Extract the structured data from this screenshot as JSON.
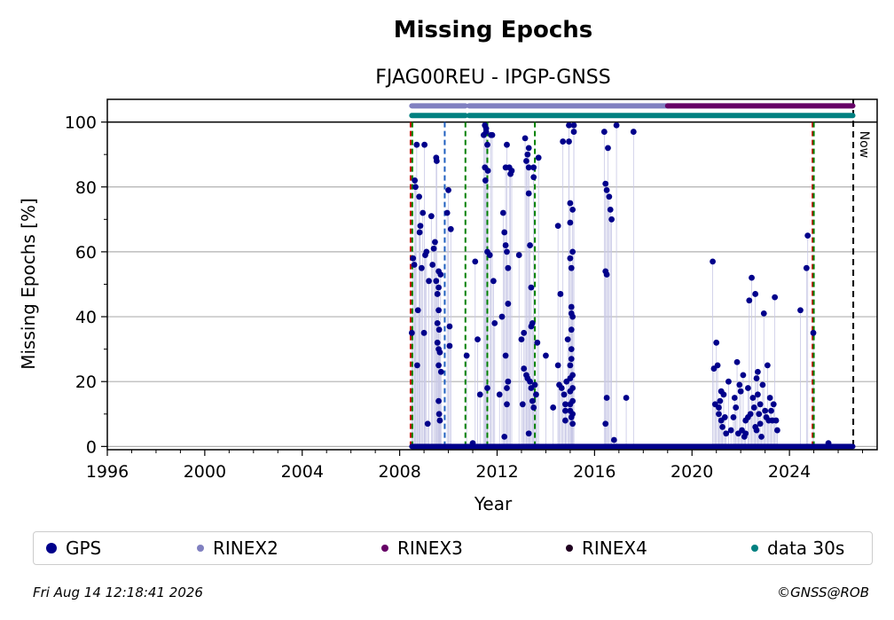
{
  "chart_data": {
    "type": "scatter",
    "title": "Missing Epochs",
    "subtitle": "FJAG00REU - IPGP-GNSS",
    "xlabel": "Year",
    "ylabel": "Missing Epochs [%]",
    "xlim": [
      1996,
      2027.6
    ],
    "ylim": [
      -1,
      107
    ],
    "x_ticks": [
      "1996",
      "2000",
      "2004",
      "2008",
      "2012",
      "2016",
      "2020",
      "2024"
    ],
    "y_ticks": [
      "0",
      "20",
      "40",
      "60",
      "80",
      "100"
    ],
    "grid": "horizontal",
    "now_label": "Now",
    "now_year": 2026.62,
    "colors": {
      "gps": "#00008b",
      "rinex2": "#8080c0",
      "rinex3": "#660066",
      "rinex4": "#200020",
      "data30s": "#008080",
      "event_green": "#008000",
      "event_red": "#cc0000",
      "event_blue": "#1f5fbf"
    },
    "events": [
      {
        "x": 2008.45,
        "color": "event_red"
      },
      {
        "x": 2008.52,
        "color": "event_green"
      },
      {
        "x": 2009.85,
        "color": "event_blue"
      },
      {
        "x": 2010.7,
        "color": "event_green"
      },
      {
        "x": 2011.6,
        "color": "event_green"
      },
      {
        "x": 2013.55,
        "color": "event_green"
      },
      {
        "x": 2024.95,
        "color": "event_red"
      },
      {
        "x": 2025.0,
        "color": "event_green"
      }
    ],
    "availability_bars": [
      {
        "name": "RINEX2",
        "y": 105,
        "color": "rinex2",
        "segments": [
          [
            2008.5,
            2010.7
          ],
          [
            2010.85,
            2019.0
          ]
        ]
      },
      {
        "name": "RINEX3",
        "y": 105,
        "color": "rinex3",
        "segments": [
          [
            2019.0,
            2026.6
          ]
        ]
      },
      {
        "name": "data 30s",
        "y": 102,
        "color": "data30s",
        "segments": [
          [
            2008.5,
            2010.7
          ],
          [
            2010.85,
            2026.6
          ]
        ]
      }
    ],
    "zero_baseline": [
      2008.5,
      2026.6
    ],
    "series": [
      {
        "name": "GPS",
        "color": "gps",
        "points": [
          [
            2008.5,
            35
          ],
          [
            2008.55,
            58
          ],
          [
            2008.6,
            56
          ],
          [
            2008.62,
            82
          ],
          [
            2008.65,
            80
          ],
          [
            2008.7,
            93
          ],
          [
            2008.72,
            25
          ],
          [
            2008.75,
            42
          ],
          [
            2008.8,
            77
          ],
          [
            2008.82,
            66
          ],
          [
            2008.85,
            68
          ],
          [
            2008.9,
            55
          ],
          [
            2008.95,
            72
          ],
          [
            2009.0,
            35
          ],
          [
            2009.02,
            93
          ],
          [
            2009.05,
            59
          ],
          [
            2009.1,
            60
          ],
          [
            2009.15,
            7
          ],
          [
            2009.2,
            51
          ],
          [
            2009.3,
            71
          ],
          [
            2009.35,
            56
          ],
          [
            2009.4,
            61
          ],
          [
            2009.45,
            63
          ],
          [
            2009.5,
            51
          ],
          [
            2009.5,
            89
          ],
          [
            2009.52,
            88
          ],
          [
            2009.55,
            47
          ],
          [
            2009.55,
            38
          ],
          [
            2009.55,
            32
          ],
          [
            2009.6,
            30
          ],
          [
            2009.6,
            25
          ],
          [
            2009.6,
            14
          ],
          [
            2009.62,
            10
          ],
          [
            2009.65,
            8
          ],
          [
            2009.7,
            23
          ],
          [
            2009.6,
            54
          ],
          [
            2009.6,
            49
          ],
          [
            2009.6,
            42
          ],
          [
            2009.62,
            36
          ],
          [
            2009.65,
            29
          ],
          [
            2009.68,
            53
          ],
          [
            2009.95,
            72
          ],
          [
            2010.0,
            79
          ],
          [
            2010.05,
            31
          ],
          [
            2010.05,
            37
          ],
          [
            2010.1,
            67
          ],
          [
            2010.75,
            28
          ],
          [
            2011.0,
            1
          ],
          [
            2011.1,
            57
          ],
          [
            2011.2,
            33
          ],
          [
            2011.3,
            16
          ],
          [
            2011.45,
            96
          ],
          [
            2011.5,
            99
          ],
          [
            2011.5,
            86
          ],
          [
            2011.52,
            82
          ],
          [
            2011.55,
            98
          ],
          [
            2011.55,
            97
          ],
          [
            2011.6,
            93
          ],
          [
            2011.6,
            60
          ],
          [
            2011.6,
            18
          ],
          [
            2011.62,
            85
          ],
          [
            2011.7,
            59
          ],
          [
            2011.75,
            96
          ],
          [
            2011.8,
            96
          ],
          [
            2011.85,
            51
          ],
          [
            2011.9,
            38
          ],
          [
            2012.1,
            16
          ],
          [
            2012.2,
            40
          ],
          [
            2012.25,
            72
          ],
          [
            2012.3,
            66
          ],
          [
            2012.35,
            62
          ],
          [
            2012.35,
            86
          ],
          [
            2012.4,
            93
          ],
          [
            2012.4,
            60
          ],
          [
            2012.45,
            55
          ],
          [
            2012.45,
            44
          ],
          [
            2012.45,
            20
          ],
          [
            2012.5,
            86
          ],
          [
            2012.55,
            84
          ],
          [
            2012.6,
            85
          ],
          [
            2012.35,
            28
          ],
          [
            2012.4,
            18
          ],
          [
            2012.3,
            3
          ],
          [
            2012.4,
            13
          ],
          [
            2012.9,
            59
          ],
          [
            2013.0,
            33
          ],
          [
            2013.05,
            13
          ],
          [
            2013.1,
            35
          ],
          [
            2013.1,
            24
          ],
          [
            2013.15,
            95
          ],
          [
            2013.2,
            88
          ],
          [
            2013.25,
            90
          ],
          [
            2013.3,
            92
          ],
          [
            2013.3,
            86
          ],
          [
            2013.3,
            78
          ],
          [
            2013.35,
            62
          ],
          [
            2013.4,
            49
          ],
          [
            2013.4,
            37
          ],
          [
            2013.45,
            38
          ],
          [
            2013.5,
            86
          ],
          [
            2013.5,
            83
          ],
          [
            2013.55,
            19
          ],
          [
            2013.6,
            16
          ],
          [
            2013.65,
            32
          ],
          [
            2013.7,
            89
          ],
          [
            2013.2,
            22
          ],
          [
            2013.25,
            21
          ],
          [
            2013.35,
            20
          ],
          [
            2013.4,
            18
          ],
          [
            2013.45,
            14
          ],
          [
            2013.5,
            12
          ],
          [
            2013.3,
            4
          ],
          [
            2014.0,
            28
          ],
          [
            2014.3,
            12
          ],
          [
            2014.5,
            68
          ],
          [
            2014.5,
            25
          ],
          [
            2014.55,
            19
          ],
          [
            2014.6,
            47
          ],
          [
            2014.65,
            18
          ],
          [
            2014.7,
            94
          ],
          [
            2014.75,
            16
          ],
          [
            2014.8,
            13
          ],
          [
            2014.8,
            11
          ],
          [
            2014.8,
            8
          ],
          [
            2014.85,
            20
          ],
          [
            2014.9,
            33
          ],
          [
            2014.95,
            99
          ],
          [
            2014.95,
            94
          ],
          [
            2015.0,
            75
          ],
          [
            2015.0,
            69
          ],
          [
            2015.0,
            58
          ],
          [
            2015.05,
            55
          ],
          [
            2015.05,
            43
          ],
          [
            2015.05,
            41
          ],
          [
            2015.05,
            36
          ],
          [
            2015.05,
            30
          ],
          [
            2015.05,
            27
          ],
          [
            2015.1,
            73
          ],
          [
            2015.1,
            60
          ],
          [
            2015.1,
            40
          ],
          [
            2015.1,
            22
          ],
          [
            2015.1,
            18
          ],
          [
            2015.1,
            14
          ],
          [
            2015.1,
            10
          ],
          [
            2015.1,
            7
          ],
          [
            2015.15,
            99
          ],
          [
            2015.15,
            97
          ],
          [
            2015.0,
            25
          ],
          [
            2015.0,
            21
          ],
          [
            2015.0,
            17
          ],
          [
            2015.0,
            13
          ],
          [
            2015.0,
            11
          ],
          [
            2015.05,
            9
          ],
          [
            2016.4,
            97
          ],
          [
            2016.45,
            81
          ],
          [
            2016.5,
            79
          ],
          [
            2016.5,
            53
          ],
          [
            2016.45,
            54
          ],
          [
            2016.5,
            15
          ],
          [
            2016.45,
            7
          ],
          [
            2016.55,
            92
          ],
          [
            2016.6,
            77
          ],
          [
            2016.65,
            73
          ],
          [
            2016.7,
            70
          ],
          [
            2016.8,
            2
          ],
          [
            2016.9,
            99
          ],
          [
            2017.3,
            15
          ],
          [
            2017.6,
            97
          ],
          [
            2020.85,
            57
          ],
          [
            2020.9,
            24
          ],
          [
            2020.95,
            13
          ],
          [
            2021.0,
            32
          ],
          [
            2021.05,
            25
          ],
          [
            2021.1,
            12
          ],
          [
            2021.1,
            10
          ],
          [
            2021.15,
            14
          ],
          [
            2021.2,
            17
          ],
          [
            2021.2,
            8
          ],
          [
            2021.25,
            6
          ],
          [
            2021.3,
            16
          ],
          [
            2021.35,
            9
          ],
          [
            2021.4,
            4
          ],
          [
            2021.5,
            20
          ],
          [
            2021.6,
            5
          ],
          [
            2021.7,
            9
          ],
          [
            2021.75,
            15
          ],
          [
            2021.8,
            12
          ],
          [
            2021.85,
            26
          ],
          [
            2021.95,
            19
          ],
          [
            2022.0,
            17
          ],
          [
            2022.05,
            5
          ],
          [
            2022.1,
            22
          ],
          [
            2022.15,
            3
          ],
          [
            2022.2,
            8
          ],
          [
            2022.3,
            18
          ],
          [
            2022.3,
            9
          ],
          [
            2022.35,
            45
          ],
          [
            2022.45,
            52
          ],
          [
            2022.5,
            15
          ],
          [
            2022.6,
            47
          ],
          [
            2022.65,
            21
          ],
          [
            2022.7,
            23
          ],
          [
            2022.7,
            16
          ],
          [
            2022.75,
            10
          ],
          [
            2022.8,
            7
          ],
          [
            2022.85,
            3
          ],
          [
            2022.9,
            19
          ],
          [
            2022.95,
            41
          ],
          [
            2023.0,
            11
          ],
          [
            2023.05,
            9
          ],
          [
            2023.1,
            25
          ],
          [
            2023.15,
            8
          ],
          [
            2023.2,
            15
          ],
          [
            2023.25,
            11
          ],
          [
            2023.3,
            8
          ],
          [
            2023.4,
            46
          ],
          [
            2023.45,
            8
          ],
          [
            2023.5,
            5
          ],
          [
            2022.4,
            10
          ],
          [
            2022.55,
            12
          ],
          [
            2022.6,
            6
          ],
          [
            2022.65,
            5
          ],
          [
            2022.2,
            4
          ],
          [
            2021.9,
            4
          ],
          [
            2022.8,
            13
          ],
          [
            2023.35,
            13
          ],
          [
            2024.45,
            42
          ],
          [
            2024.7,
            55
          ],
          [
            2024.75,
            65
          ],
          [
            2024.98,
            35
          ],
          [
            2025.6,
            1
          ]
        ]
      }
    ],
    "legend": [
      {
        "label": "GPS",
        "color": "gps",
        "size": 12
      },
      {
        "label": "RINEX2",
        "color": "rinex2",
        "size": 8
      },
      {
        "label": "RINEX3",
        "color": "rinex3",
        "size": 8
      },
      {
        "label": "RINEX4",
        "color": "rinex4",
        "size": 8
      },
      {
        "label": "data 30s",
        "color": "data30s",
        "size": 8
      }
    ]
  },
  "footer": {
    "timestamp": "Fri Aug 14 12:18:41 2026",
    "copyright": "©GNSS@ROB"
  }
}
